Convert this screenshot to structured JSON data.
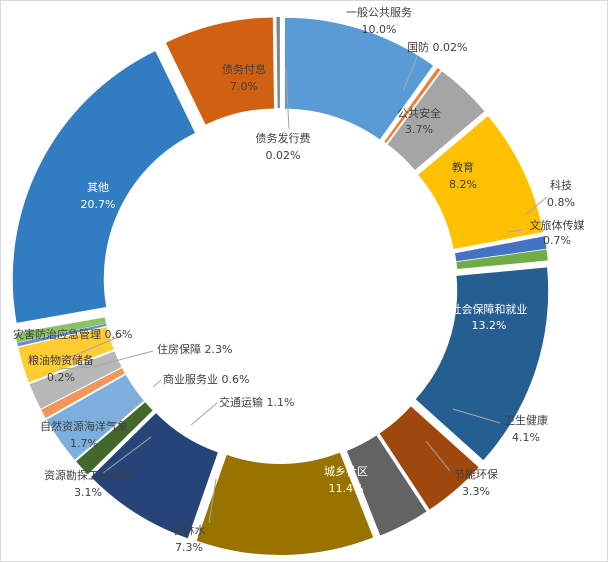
{
  "chart_data": {
    "type": "pie",
    "variant": "exploded-doughnut",
    "legend": "none",
    "categories": [
      "一般公共服务",
      "国防",
      "公共安全",
      "教育",
      "科技",
      "文旅体传媒",
      "社会保障和就业",
      "卫生健康",
      "节能环保",
      "城乡社区",
      "农林水",
      "交通运输",
      "资源勘探工业信息",
      "商业服务业",
      "自然资源海洋气象",
      "住房保障",
      "粮油物资储备",
      "灾害防治应急管理",
      "其他",
      "债务付息",
      "债务发行费"
    ],
    "values": [
      10.0,
      0.02,
      3.7,
      8.2,
      0.8,
      0.7,
      13.2,
      4.1,
      3.3,
      11.4,
      7.3,
      1.1,
      3.1,
      0.6,
      1.7,
      2.3,
      0.2,
      0.6,
      20.7,
      7.0,
      0.02
    ],
    "value_labels": [
      "10.0%",
      "0.02%",
      "3.7%",
      "8.2%",
      "0.8%",
      "0.7%",
      "13.2%",
      "4.1%",
      "3.3%",
      "11.4%",
      "7.3%",
      "1.1%",
      "3.1%",
      "0.6%",
      "1.7%",
      "2.3%",
      "0.2%",
      "0.6%",
      "20.7%",
      "7.0%",
      "0.02%"
    ],
    "colors": [
      "#5b9bd5",
      "#ed7d31",
      "#a5a5a5",
      "#ffc000",
      "#4472c4",
      "#70ad47",
      "#255e91",
      "#9e480e",
      "#636363",
      "#997300",
      "#264478",
      "#43682b",
      "#7cafdd",
      "#f1975a",
      "#b7b7b7",
      "#ffcd33",
      "#698ed0",
      "#8cc168",
      "#327dc2",
      "#d26012",
      "#848484"
    ]
  }
}
